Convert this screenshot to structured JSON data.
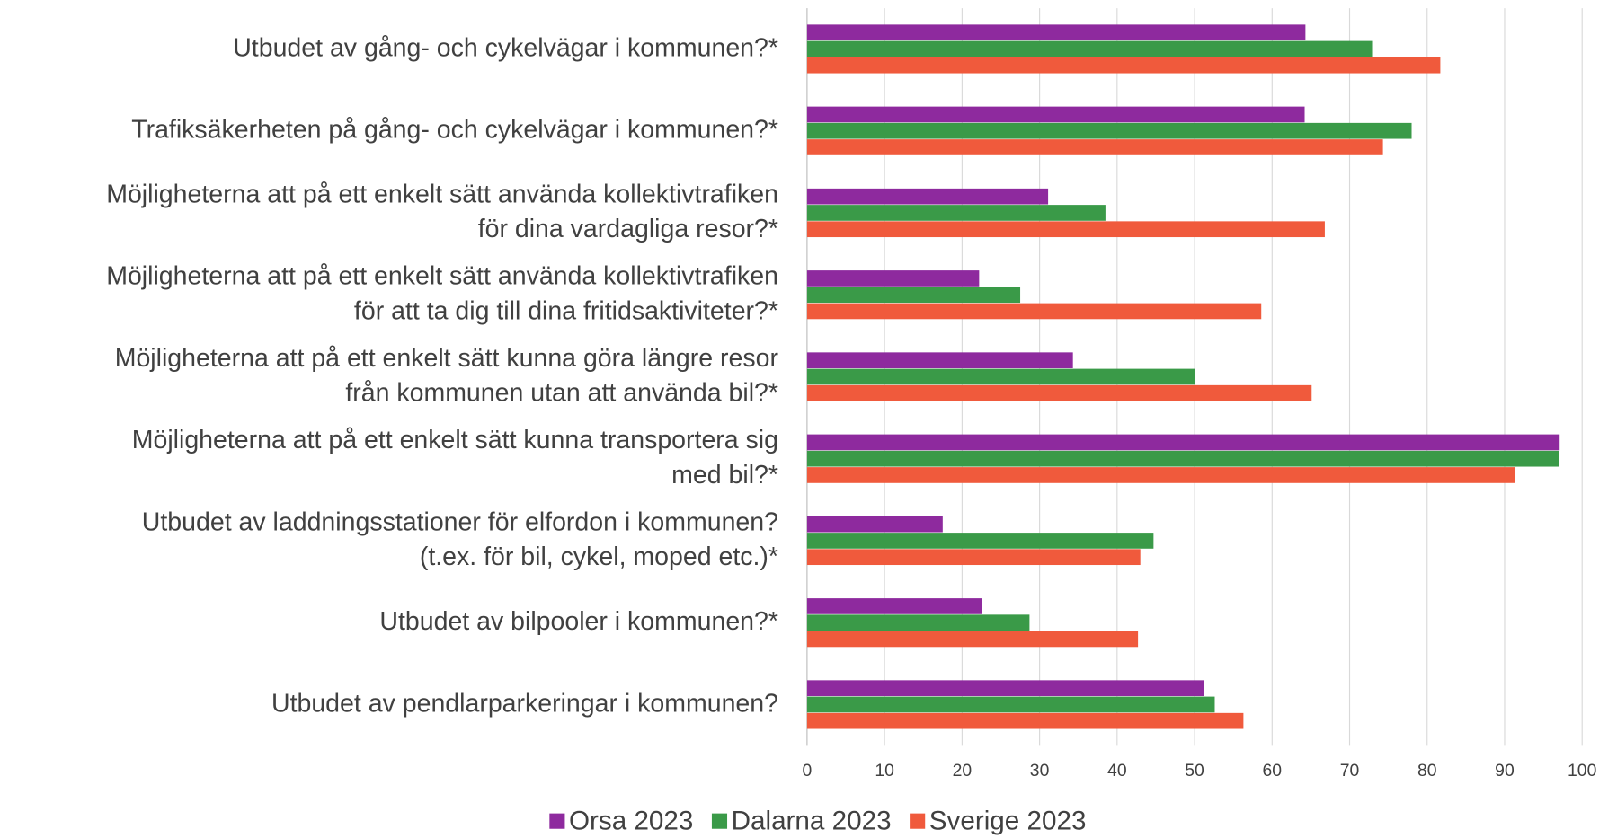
{
  "chart_data": {
    "type": "bar",
    "orientation": "horizontal",
    "categories": [
      [
        "Utbudet av gång- och cykelvägar i kommunen?*"
      ],
      [
        "Trafiksäkerheten på gång- och cykelvägar i kommunen?*"
      ],
      [
        "Möjligheterna att på ett enkelt sätt använda kollektivtrafiken",
        "för dina vardagliga resor?*"
      ],
      [
        "Möjligheterna att på ett enkelt sätt använda kollektivtrafiken",
        "för att ta dig till dina fritidsaktiviteter?*"
      ],
      [
        "Möjligheterna att på ett enkelt sätt kunna göra längre resor",
        "från kommunen utan att använda bil?*"
      ],
      [
        "Möjligheterna att på ett enkelt sätt kunna transportera sig",
        "med bil?*"
      ],
      [
        "Utbudet av laddningsstationer för elfordon i kommunen?",
        "(t.ex. för bil, cykel, moped etc.)*"
      ],
      [
        "Utbudet av bilpooler i kommunen?*"
      ],
      [
        "Utbudet av pendlarparkeringar i kommunen?"
      ]
    ],
    "series": [
      {
        "name": "Orsa 2023",
        "color": "#8e2a9e",
        "values": [
          64.3,
          64.2,
          31.1,
          22.2,
          34.3,
          97.1,
          17.5,
          22.6,
          51.2
        ]
      },
      {
        "name": "Dalarna 2023",
        "color": "#3a9a48",
        "values": [
          72.9,
          78.0,
          38.5,
          27.5,
          50.1,
          97.0,
          44.7,
          28.7,
          52.6
        ]
      },
      {
        "name": "Sverige 2023",
        "color": "#f05a3c",
        "values": [
          81.7,
          74.3,
          66.8,
          58.6,
          65.1,
          91.3,
          43.0,
          42.7,
          56.3
        ]
      }
    ],
    "xlim": [
      0,
      100
    ],
    "xticks": [
      0,
      10,
      20,
      30,
      40,
      50,
      60,
      70,
      80,
      90,
      100
    ],
    "grid": true,
    "legend": "bottom"
  }
}
